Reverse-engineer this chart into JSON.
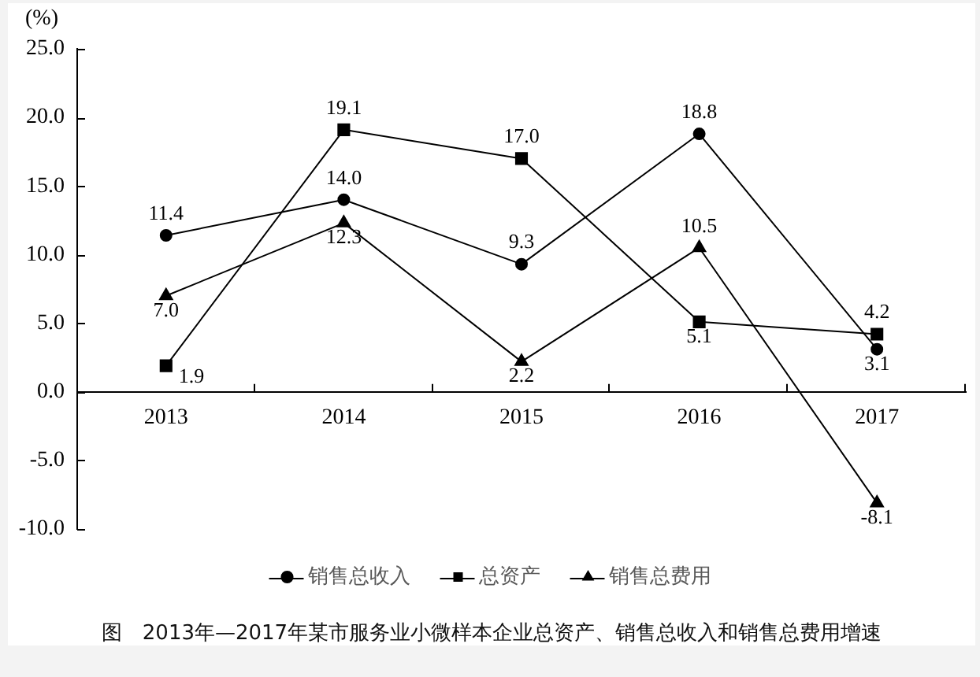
{
  "chart_data": {
    "type": "line",
    "title": "图　2013年—2017年某市服务业小微样本企业总资产、销售总收入和销售总费用增速",
    "ylabel": "(%)",
    "categories": [
      "2013",
      "2014",
      "2015",
      "2016",
      "2017"
    ],
    "series": [
      {
        "name": "销售总收入",
        "color": "#000000",
        "marker": "circle",
        "values": [
          11.4,
          14.0,
          9.3,
          18.8,
          3.1
        ],
        "value_labels": [
          "11.4",
          "14.0",
          "9.3",
          "18.8",
          "3.1"
        ]
      },
      {
        "name": "总资产",
        "color": "#000000",
        "marker": "square",
        "values": [
          1.9,
          19.1,
          17.0,
          5.1,
          4.2
        ],
        "value_labels": [
          "1.9",
          "19.1",
          "17.0",
          "5.1",
          "4.2"
        ]
      },
      {
        "name": "销售总费用",
        "color": "#000000",
        "marker": "triangle",
        "values": [
          7.0,
          12.3,
          2.2,
          10.5,
          -8.1
        ],
        "value_labels": [
          "7.0",
          "12.3",
          "2.2",
          "10.5",
          "-8.1"
        ]
      }
    ],
    "ylim": [
      -10,
      25
    ],
    "yticks": [
      {
        "value": -10,
        "label": "-10.0"
      },
      {
        "value": -5,
        "label": "-5.0"
      },
      {
        "value": 0,
        "label": "0.0"
      },
      {
        "value": 5,
        "label": "5.0"
      },
      {
        "value": 10,
        "label": "10.0"
      },
      {
        "value": 15,
        "label": "15.0"
      },
      {
        "value": 20,
        "label": "20.0"
      },
      {
        "value": 25,
        "label": "25.0"
      }
    ],
    "grid": false,
    "legend": "bottom",
    "line_style": "solid"
  }
}
